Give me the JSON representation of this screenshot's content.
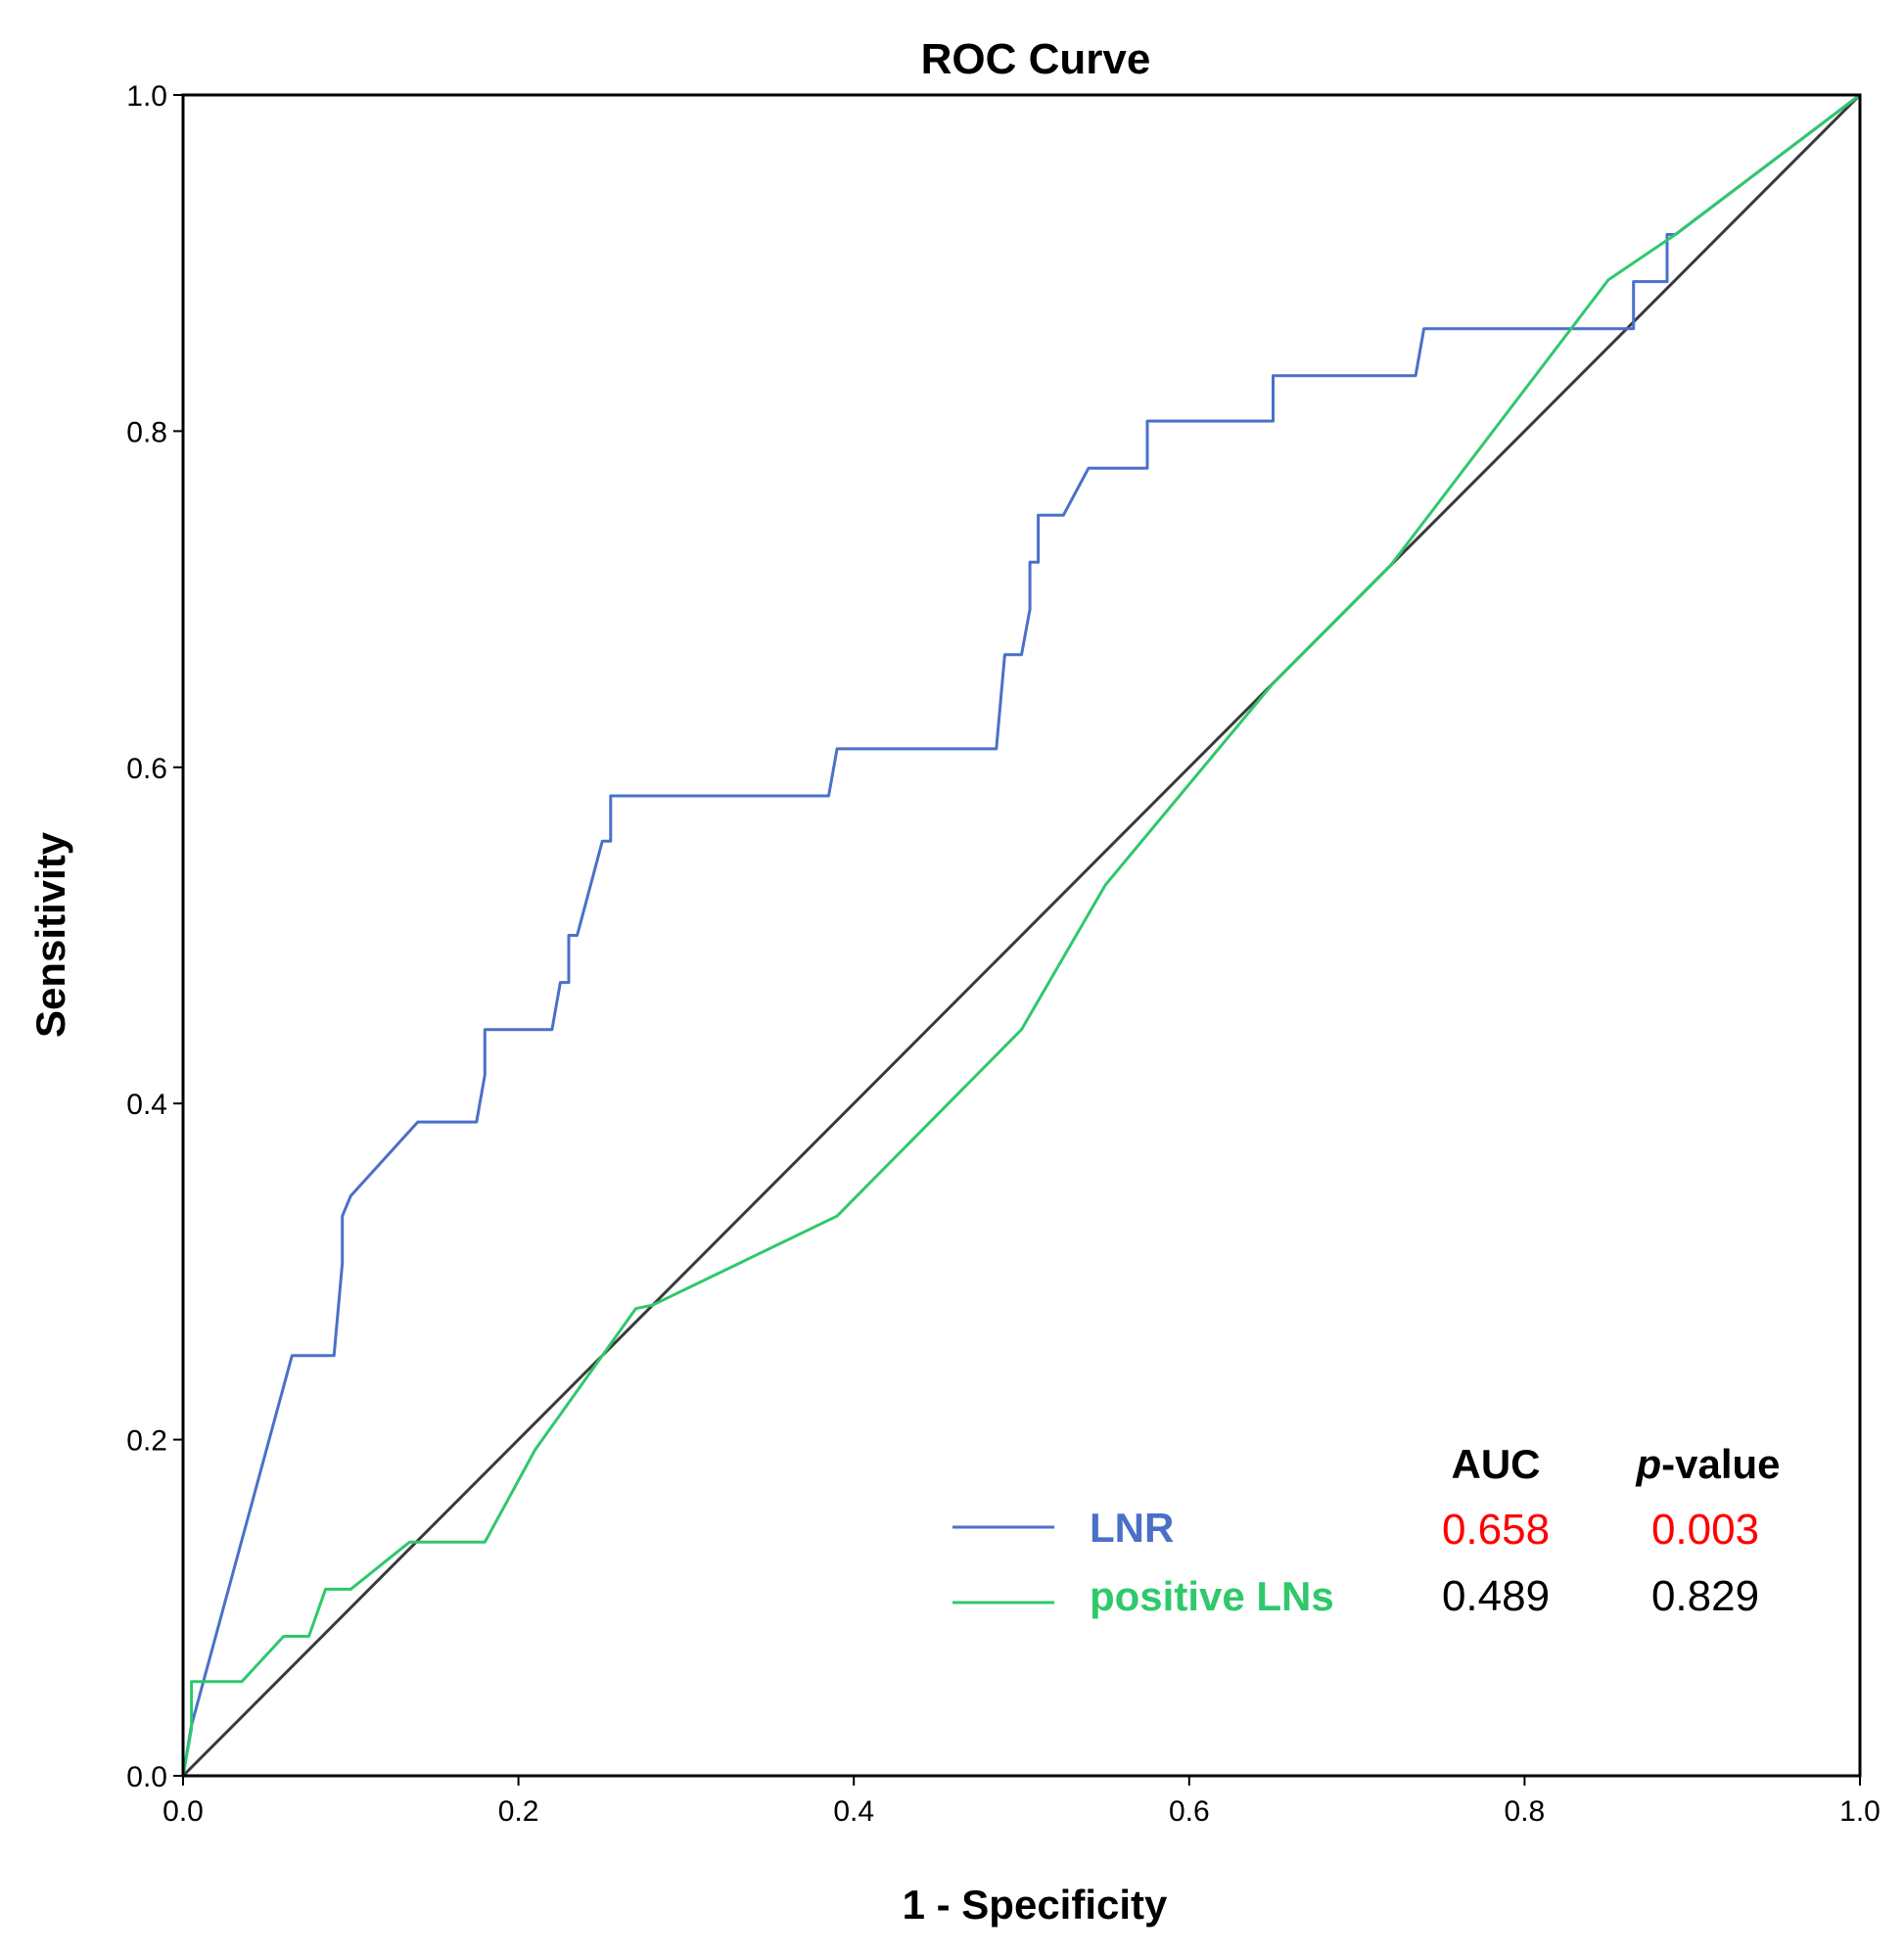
{
  "chart_data": {
    "type": "line",
    "title": "ROC Curve",
    "xlabel": "1 - Specificity",
    "ylabel": "Sensitivity",
    "xlim": [
      0,
      1
    ],
    "ylim": [
      0,
      1
    ],
    "x_ticks": [
      "0.0",
      "0.2",
      "0.4",
      "0.6",
      "0.8",
      "1.0"
    ],
    "y_ticks": [
      "0.0",
      "0.2",
      "0.4",
      "0.6",
      "0.8",
      "1.0"
    ],
    "grid": false,
    "legend_position": "bottom-right",
    "stats_header": {
      "auc": "AUC",
      "p_prefix": "p",
      "p_suffix": "-value"
    },
    "reference_line": {
      "name": "diagonal reference",
      "color": "#3a3a3a",
      "x": [
        0,
        1
      ],
      "y": [
        0,
        1
      ]
    },
    "series": [
      {
        "name": "LNR",
        "color": "#4a70c8",
        "auc": "0.658",
        "p_value": "0.003",
        "stat_color": "#ff0000",
        "x": [
          0,
          0.005,
          0.065,
          0.09,
          0.095,
          0.095,
          0.1,
          0.14,
          0.175,
          0.18,
          0.18,
          0.22,
          0.225,
          0.23,
          0.23,
          0.235,
          0.25,
          0.255,
          0.255,
          0.265,
          0.385,
          0.39,
          0.485,
          0.49,
          0.49,
          0.5,
          0.505,
          0.505,
          0.51,
          0.51,
          0.515,
          0.525,
          0.54,
          0.575,
          0.575,
          0.65,
          0.65,
          0.735,
          0.74,
          0.865,
          0.865,
          0.885,
          0.885,
          0.89,
          1
        ],
        "y": [
          0,
          0.03,
          0.25,
          0.25,
          0.305,
          0.333,
          0.345,
          0.389,
          0.389,
          0.417,
          0.444,
          0.444,
          0.472,
          0.472,
          0.5,
          0.5,
          0.556,
          0.556,
          0.583,
          0.583,
          0.583,
          0.611,
          0.611,
          0.667,
          0.667,
          0.667,
          0.694,
          0.722,
          0.722,
          0.75,
          0.75,
          0.75,
          0.778,
          0.778,
          0.806,
          0.806,
          0.833,
          0.833,
          0.861,
          0.861,
          0.889,
          0.889,
          0.917,
          0.917,
          1
        ]
      },
      {
        "name": "positive LNs",
        "color": "#2fc86b",
        "auc": "0.489",
        "p_value": "0.829",
        "stat_color": "#000000",
        "x": [
          0,
          0.005,
          0.005,
          0.035,
          0.06,
          0.075,
          0.085,
          0.1,
          0.135,
          0.18,
          0.21,
          0.25,
          0.27,
          0.28,
          0.39,
          0.5,
          0.55,
          0.65,
          0.72,
          0.85,
          0.89,
          1
        ],
        "y": [
          0,
          0.028,
          0.056,
          0.056,
          0.083,
          0.083,
          0.111,
          0.111,
          0.139,
          0.139,
          0.194,
          0.25,
          0.278,
          0.28,
          0.333,
          0.444,
          0.53,
          0.65,
          0.72,
          0.89,
          0.917,
          1
        ]
      }
    ]
  }
}
